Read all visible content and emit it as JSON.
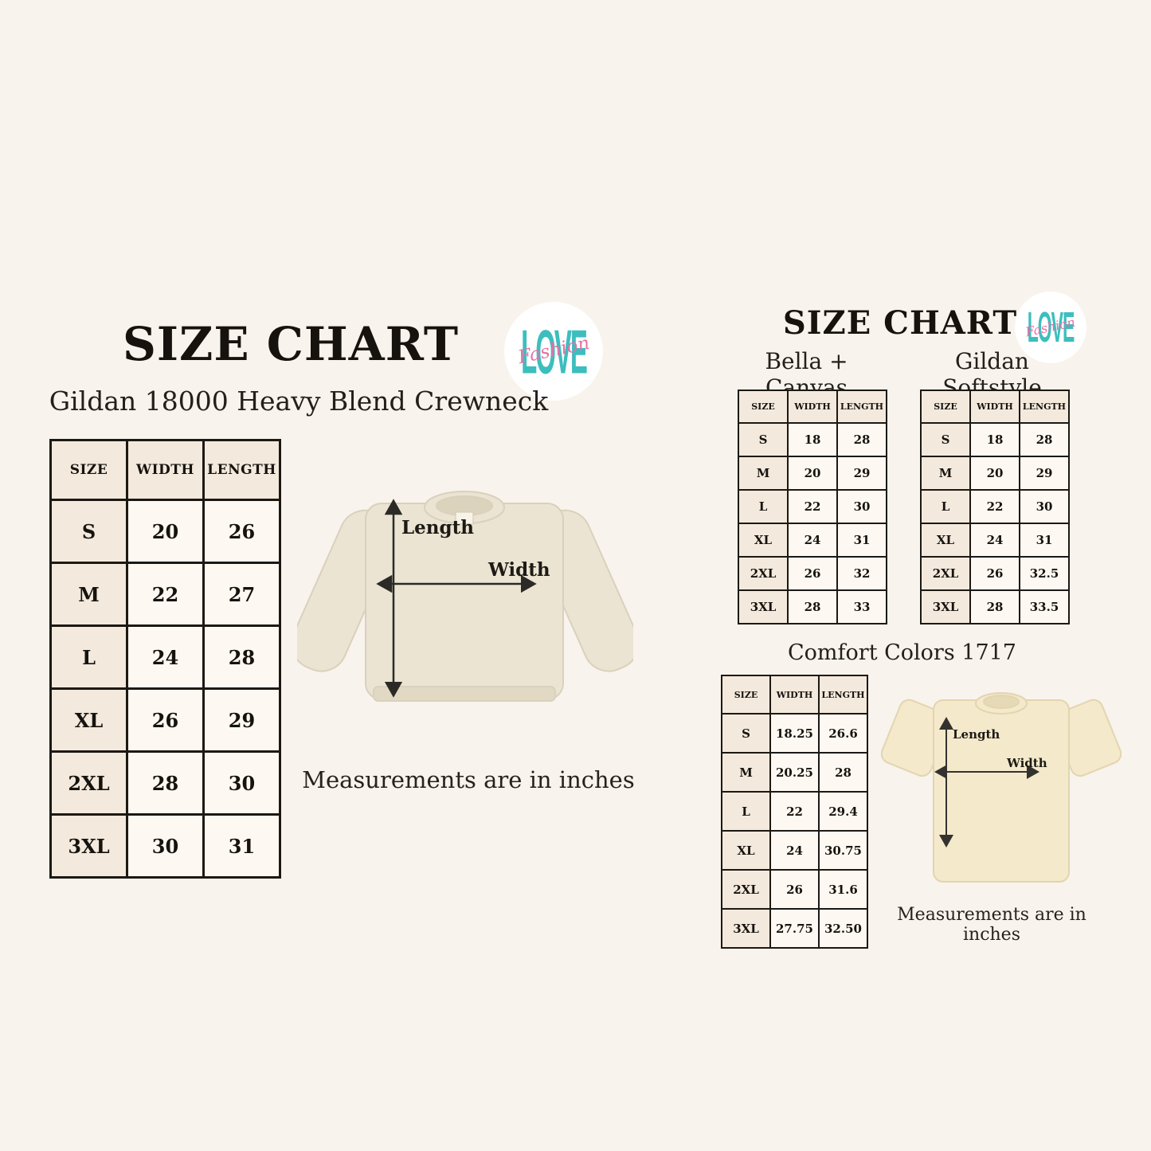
{
  "page": {
    "background_color": "#F8F3EC"
  },
  "logo": {
    "word": "LOVE",
    "script_word": "Fashion",
    "word_color": "#3CBEBE",
    "script_color": "#E770A6"
  },
  "left_section": {
    "title": "SIZE CHART",
    "subtitle": "Gildan 18000 Heavy Blend Crewneck",
    "note": "Measurements are in inches",
    "diagram_labels": {
      "length": "Length",
      "width": "Width"
    },
    "table": {
      "headers": [
        "SIZE",
        "WIDTH",
        "LENGTH"
      ],
      "rows": [
        [
          "S",
          "20",
          "26"
        ],
        [
          "M",
          "22",
          "27"
        ],
        [
          "L",
          "24",
          "28"
        ],
        [
          "XL",
          "26",
          "29"
        ],
        [
          "2XL",
          "28",
          "30"
        ],
        [
          "3XL",
          "30",
          "31"
        ]
      ]
    }
  },
  "right_section": {
    "title": "SIZE CHART",
    "note": "Measurements are in inches",
    "diagram_labels": {
      "length": "Length",
      "width": "Width"
    },
    "bella_canvas": {
      "name": "Bella + Canvas",
      "headers": [
        "SIZE",
        "WIDTH",
        "LENGTH"
      ],
      "rows": [
        [
          "S",
          "18",
          "28"
        ],
        [
          "M",
          "20",
          "29"
        ],
        [
          "L",
          "22",
          "30"
        ],
        [
          "XL",
          "24",
          "31"
        ],
        [
          "2XL",
          "26",
          "32"
        ],
        [
          "3XL",
          "28",
          "33"
        ]
      ]
    },
    "gildan_softstyle": {
      "name": "Gildan Softstyle",
      "headers": [
        "SIZE",
        "WIDTH",
        "LENGTH"
      ],
      "rows": [
        [
          "S",
          "18",
          "28"
        ],
        [
          "M",
          "20",
          "29"
        ],
        [
          "L",
          "22",
          "30"
        ],
        [
          "XL",
          "24",
          "31"
        ],
        [
          "2XL",
          "26",
          "32.5"
        ],
        [
          "3XL",
          "28",
          "33.5"
        ]
      ]
    },
    "comfort_colors": {
      "name": "Comfort Colors 1717",
      "headers": [
        "SIZE",
        "WIDTH",
        "LENGTH"
      ],
      "rows": [
        [
          "S",
          "18.25",
          "26.6"
        ],
        [
          "M",
          "20.25",
          "28"
        ],
        [
          "L",
          "22",
          "29.4"
        ],
        [
          "XL",
          "24",
          "30.75"
        ],
        [
          "2XL",
          "26",
          "31.6"
        ],
        [
          "3XL",
          "27.75",
          "32.50"
        ]
      ]
    }
  }
}
